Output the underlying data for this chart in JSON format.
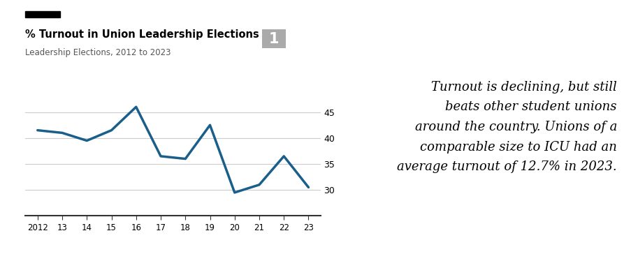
{
  "x_years": [
    2012,
    2013,
    2014,
    2015,
    2016,
    2017,
    2018,
    2019,
    2020,
    2021,
    2022,
    2023
  ],
  "y_values": [
    41.5,
    41.0,
    39.5,
    41.5,
    46.0,
    36.5,
    36.0,
    42.5,
    29.5,
    31.0,
    36.5,
    30.5
  ],
  "line_color": "#1a5f8a",
  "line_width": 2.5,
  "title": "% Turnout in Union Leadership Elections",
  "subtitle": "Leadership Elections, 2012 to 2023",
  "title_fontsize": 10.5,
  "subtitle_fontsize": 8.5,
  "ylim": [
    25,
    48
  ],
  "yticks": [
    30,
    35,
    40,
    45
  ],
  "bg_color": "#ffffff",
  "grid_color": "#cccccc",
  "annotation_text": "Turnout is declining, but still\nbeats other student unions\naround the country. Unions of a\ncomparable size to ICU had an\naverage turnout of 12.7% in 2023.",
  "annotation_fontsize": 13.0,
  "number_badge": "1",
  "badge_color": "#aaaaaa",
  "badge_fontsize": 15,
  "x_tick_labels": [
    "2012",
    "13",
    "14",
    "15",
    "16",
    "17",
    "18",
    "19",
    "20",
    "21",
    "22",
    "23"
  ],
  "black_bar_width": 0.055,
  "black_bar_height": 0.025
}
